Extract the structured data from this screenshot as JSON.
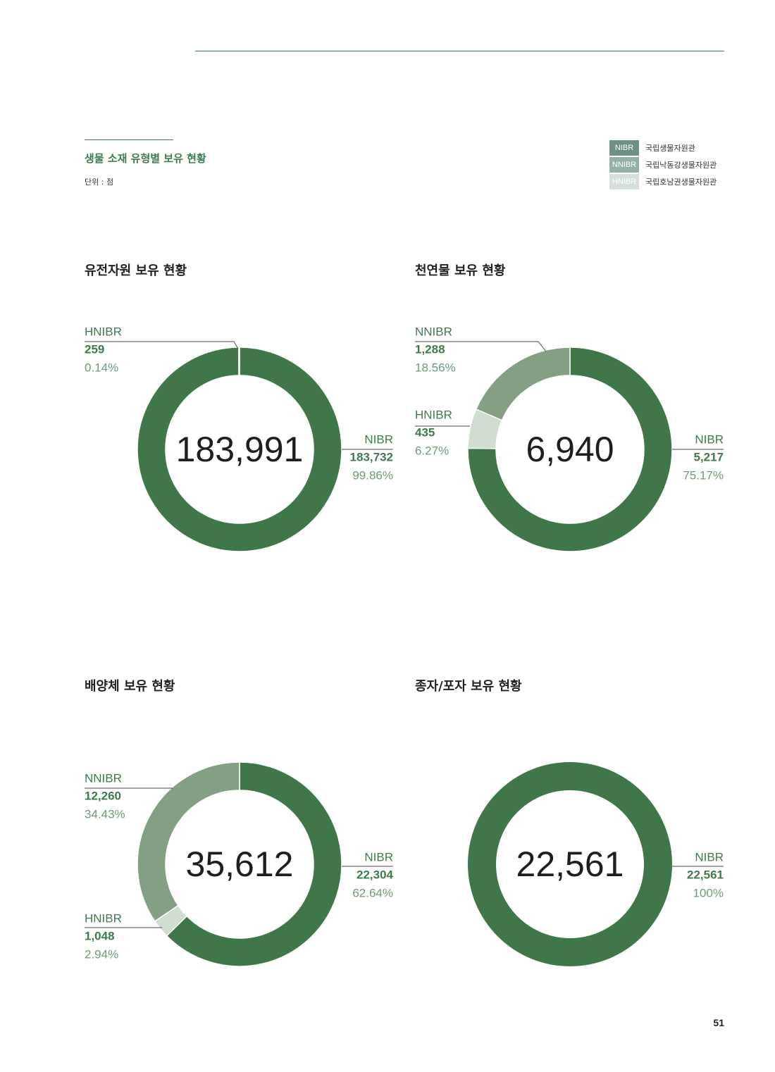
{
  "section": {
    "title": "생물 소재 유형별 보유 현황",
    "unit": "단위 : 점"
  },
  "legend": [
    {
      "code": "NIBR",
      "name": "국립생물자원관",
      "color": "#6e9087"
    },
    {
      "code": "NNIBR",
      "name": "국립낙동강생물자원관",
      "color": "#95b0a8"
    },
    {
      "code": "HNIBR",
      "name": "국립호남권생물자원관",
      "color": "#d5dfdb"
    }
  ],
  "page_number": "51",
  "chart_data": [
    {
      "type": "pie",
      "title": "유전자원 보유 현황",
      "total": "183,991",
      "series": [
        {
          "name": "NIBR",
          "value": 183732,
          "value_label": "183,732",
          "percent_label": "99.86%",
          "color": "#3f774b"
        },
        {
          "name": "HNIBR",
          "value": 259,
          "value_label": "259",
          "percent_label": "0.14%",
          "color": "#d1ddd1"
        }
      ]
    },
    {
      "type": "pie",
      "title": "천연물 보유 현황",
      "total": "6,940",
      "series": [
        {
          "name": "NIBR",
          "value": 5217,
          "value_label": "5,217",
          "percent_label": "75.17%",
          "color": "#3f774b"
        },
        {
          "name": "HNIBR",
          "value": 435,
          "value_label": "435",
          "percent_label": "6.27%",
          "color": "#d1ddd1"
        },
        {
          "name": "NNIBR",
          "value": 1288,
          "value_label": "1,288",
          "percent_label": "18.56%",
          "color": "#849f84"
        }
      ]
    },
    {
      "type": "pie",
      "title": "배양체 보유 현황",
      "total": "35,612",
      "series": [
        {
          "name": "NIBR",
          "value": 22304,
          "value_label": "22,304",
          "percent_label": "62.64%",
          "color": "#3f774b"
        },
        {
          "name": "HNIBR",
          "value": 1048,
          "value_label": "1,048",
          "percent_label": "2.94%",
          "color": "#d1ddd1"
        },
        {
          "name": "NNIBR",
          "value": 12260,
          "value_label": "12,260",
          "percent_label": "34.43%",
          "color": "#849f84"
        }
      ]
    },
    {
      "type": "pie",
      "title": "종자/포자 보유 현황",
      "total": "22,561",
      "series": [
        {
          "name": "NIBR",
          "value": 22561,
          "value_label": "22,561",
          "percent_label": "100%",
          "color": "#3f774b"
        }
      ]
    }
  ]
}
